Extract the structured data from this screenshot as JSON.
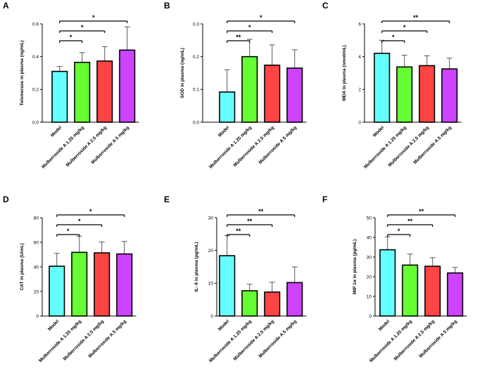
{
  "chart_data": [
    {
      "panel": "A",
      "type": "bar",
      "ylabel": "Telomerase in plasma (ng/mL)",
      "ylim": [
        0,
        0.6
      ],
      "yticks": [
        "0.0",
        "0.2",
        "0.4",
        "0.6"
      ],
      "tick_values": [
        0,
        0.2,
        0.4,
        0.6
      ],
      "categories": [
        "Model",
        "Mulberroside A 1.25 mg/kg",
        "Mulberroside A 2.5 mg/kg",
        "Mulberroside A 5 mg/kg"
      ],
      "values": [
        0.31,
        0.365,
        0.373,
        0.44
      ],
      "errors": [
        0.03,
        0.06,
        0.088,
        0.142
      ],
      "bar_colors": [
        "#66FFFF",
        "#66FF33",
        "#FF4444",
        "#CC44FF"
      ],
      "significance": [
        {
          "from": 0,
          "to": 1,
          "label": "*"
        },
        {
          "from": 0,
          "to": 2,
          "label": "*"
        },
        {
          "from": 0,
          "to": 3,
          "label": "*"
        }
      ]
    },
    {
      "panel": "B",
      "type": "bar",
      "ylabel": "SOD in plasma (ng/mL)",
      "ylim": [
        0,
        0.3
      ],
      "yticks": [
        "0.0",
        "0.1",
        "0.2",
        "0.3"
      ],
      "tick_values": [
        0,
        0.1,
        0.2,
        0.3
      ],
      "categories": [
        "Model",
        "Mulberroside A 1.25 mg/kg",
        "Mulberroside A 2.5 mg/kg",
        "Mulberroside A 5 mg/kg"
      ],
      "values": [
        0.092,
        0.2,
        0.174,
        0.165
      ],
      "errors": [
        0.068,
        0.053,
        0.062,
        0.056
      ],
      "bar_colors": [
        "#66FFFF",
        "#66FF33",
        "#FF4444",
        "#CC44FF"
      ],
      "significance": [
        {
          "from": 0,
          "to": 1,
          "label": "**"
        },
        {
          "from": 0,
          "to": 2,
          "label": "*"
        },
        {
          "from": 0,
          "to": 3,
          "label": "*"
        }
      ]
    },
    {
      "panel": "C",
      "type": "bar",
      "ylabel": "MDA in plasma (nmol/mL)",
      "ylim": [
        0,
        6
      ],
      "yticks": [
        "0",
        "2",
        "4",
        "6"
      ],
      "tick_values": [
        0,
        2,
        4,
        6
      ],
      "categories": [
        "Model",
        "Mulberroside A 1.25 mg/kg",
        "Mulberroside A 2.5 mg/kg",
        "Mulberroside A 5 mg/kg"
      ],
      "values": [
        4.2,
        3.37,
        3.45,
        3.25
      ],
      "errors": [
        0.8,
        0.72,
        0.6,
        0.66
      ],
      "bar_colors": [
        "#66FFFF",
        "#66FF33",
        "#FF4444",
        "#CC44FF"
      ],
      "significance": [
        {
          "from": 0,
          "to": 1,
          "label": "*"
        },
        {
          "from": 0,
          "to": 2,
          "label": "*"
        },
        {
          "from": 0,
          "to": 3,
          "label": "**"
        }
      ]
    },
    {
      "panel": "D",
      "type": "bar",
      "ylabel": "CAT in plasma (U/mL)",
      "ylim": [
        0,
        80
      ],
      "yticks": [
        "0",
        "20",
        "40",
        "60",
        "80"
      ],
      "tick_values": [
        0,
        20,
        40,
        60,
        80
      ],
      "categories": [
        "Model",
        "Mulberroside A 1.25 mg/kg",
        "Mulberroside A 2.5 mg/kg",
        "Mulberroside A 5 mg/kg"
      ],
      "values": [
        40.5,
        51.8,
        51.4,
        50.5
      ],
      "errors": [
        10.5,
        13.2,
        8.8,
        10.2
      ],
      "bar_colors": [
        "#66FFFF",
        "#66FF33",
        "#FF4444",
        "#CC44FF"
      ],
      "significance": [
        {
          "from": 0,
          "to": 1,
          "label": "*"
        },
        {
          "from": 0,
          "to": 2,
          "label": "*"
        },
        {
          "from": 0,
          "to": 3,
          "label": "*"
        }
      ]
    },
    {
      "panel": "E",
      "type": "bar",
      "ylabel": "IL- 6 in plasma (pg/mL)",
      "ylim": [
        0,
        30
      ],
      "yticks": [
        "0",
        "10",
        "20",
        "30"
      ],
      "tick_values": [
        0,
        10,
        20,
        30
      ],
      "categories": [
        "Model",
        "Mulberroside A 1.25 mg/kg",
        "Mulberroside A 2.5 mg/kg",
        "Mulberroside A 5 mg/kg"
      ],
      "values": [
        18.4,
        7.7,
        7.3,
        10.2
      ],
      "errors": [
        6.1,
        2.0,
        3.0,
        4.8
      ],
      "bar_colors": [
        "#66FFFF",
        "#66FF33",
        "#FF4444",
        "#CC44FF"
      ],
      "significance": [
        {
          "from": 0,
          "to": 1,
          "label": "**"
        },
        {
          "from": 0,
          "to": 2,
          "label": "**"
        },
        {
          "from": 0,
          "to": 3,
          "label": "**"
        }
      ]
    },
    {
      "panel": "F",
      "type": "bar",
      "ylabel": "MIP 1α in plasma (pg/mL)",
      "ylim": [
        0,
        50
      ],
      "yticks": [
        "0",
        "10",
        "20",
        "30",
        "40",
        "50"
      ],
      "tick_values": [
        0,
        10,
        20,
        30,
        40,
        50
      ],
      "categories": [
        "Model",
        "Mulberroside A 1.25 mg/kg",
        "Mulberroside A 2.5 mg/kg",
        "Mulberroside A 5 mg/kg"
      ],
      "values": [
        33.7,
        25.9,
        25.3,
        21.9
      ],
      "errors": [
        6.6,
        5.6,
        4.4,
        2.8
      ],
      "bar_colors": [
        "#66FFFF",
        "#66FF33",
        "#FF4444",
        "#CC44FF"
      ],
      "significance": [
        {
          "from": 0,
          "to": 1,
          "label": "*"
        },
        {
          "from": 0,
          "to": 2,
          "label": "**"
        },
        {
          "from": 0,
          "to": 3,
          "label": "**"
        }
      ]
    }
  ]
}
